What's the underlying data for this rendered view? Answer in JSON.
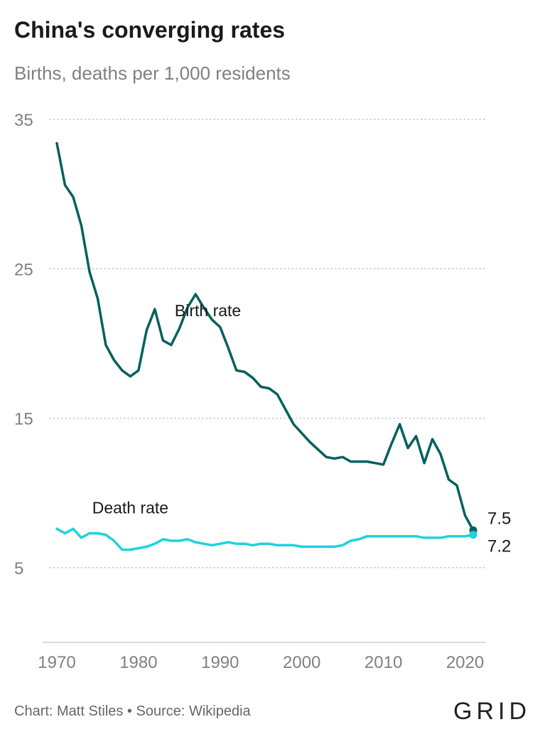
{
  "header": {
    "title": "China's converging rates",
    "subtitle": "Births, deaths per 1,000 residents"
  },
  "footer": {
    "credit": "Chart: Matt Stiles • Source: Wikipedia",
    "logo_text": "GRID"
  },
  "chart_data": {
    "type": "line",
    "title": "China's converging rates",
    "subtitle": "Births, deaths per 1,000 residents",
    "xlabel": "",
    "ylabel": "",
    "xlim": [
      1970,
      2021
    ],
    "ylim": [
      0,
      35
    ],
    "x_ticks": [
      1970,
      1980,
      1990,
      2000,
      2010,
      2020
    ],
    "y_ticks": [
      5,
      15,
      25,
      35
    ],
    "grid": "horizontal dotted",
    "x": [
      1970,
      1971,
      1972,
      1973,
      1974,
      1975,
      1976,
      1977,
      1978,
      1979,
      1980,
      1981,
      1982,
      1983,
      1984,
      1985,
      1986,
      1987,
      1988,
      1989,
      1990,
      1991,
      1992,
      1993,
      1994,
      1995,
      1996,
      1997,
      1998,
      1999,
      2000,
      2001,
      2002,
      2003,
      2004,
      2005,
      2006,
      2007,
      2008,
      2009,
      2010,
      2011,
      2012,
      2013,
      2014,
      2015,
      2016,
      2017,
      2018,
      2019,
      2020,
      2021
    ],
    "series": [
      {
        "name": "Birth rate",
        "color": "#05605f",
        "values": [
          33.4,
          30.6,
          29.8,
          27.9,
          24.8,
          23.0,
          19.9,
          18.9,
          18.2,
          17.8,
          18.2,
          20.9,
          22.3,
          20.2,
          19.9,
          21.0,
          22.4,
          23.3,
          22.4,
          21.6,
          21.1,
          19.7,
          18.2,
          18.1,
          17.7,
          17.1,
          17.0,
          16.6,
          15.6,
          14.6,
          14.0,
          13.4,
          12.9,
          12.4,
          12.3,
          12.4,
          12.1,
          12.1,
          12.1,
          12.0,
          11.9,
          13.3,
          14.6,
          13.0,
          13.8,
          12.0,
          13.6,
          12.6,
          10.9,
          10.5,
          8.5,
          7.5
        ],
        "end_label": "7.5"
      },
      {
        "name": "Death rate",
        "color": "#1dd3dc",
        "values": [
          7.6,
          7.3,
          7.6,
          7.0,
          7.3,
          7.3,
          7.2,
          6.8,
          6.2,
          6.2,
          6.3,
          6.4,
          6.6,
          6.9,
          6.8,
          6.8,
          6.9,
          6.7,
          6.6,
          6.5,
          6.6,
          6.7,
          6.6,
          6.6,
          6.5,
          6.6,
          6.6,
          6.5,
          6.5,
          6.5,
          6.4,
          6.4,
          6.4,
          6.4,
          6.4,
          6.5,
          6.8,
          6.9,
          7.1,
          7.1,
          7.1,
          7.1,
          7.1,
          7.1,
          7.1,
          7.0,
          7.0,
          7.0,
          7.1,
          7.1,
          7.1,
          7.2
        ],
        "end_label": "7.2"
      }
    ]
  }
}
